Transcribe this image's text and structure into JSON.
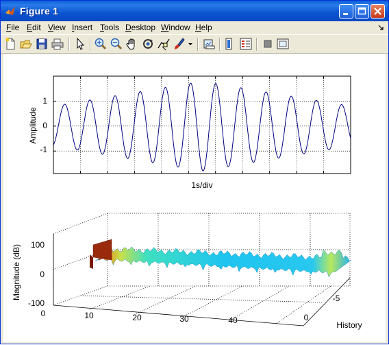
{
  "window": {
    "title": "Figure 1"
  },
  "menu": [
    "File",
    "Edit",
    "View",
    "Insert",
    "Tools",
    "Desktop",
    "Window",
    "Help"
  ],
  "toolbar_icons": [
    "new-figure-icon",
    "open-file-icon",
    "save-icon",
    "print-icon",
    "edit-plot-icon",
    "zoom-in-icon",
    "zoom-out-icon",
    "pan-icon",
    "rotate-3d-icon",
    "data-cursor-icon",
    "brush-icon",
    "brush-dropdown-icon",
    "link-plot-icon",
    "insert-colorbar-icon",
    "insert-legend-icon",
    "hide-plot-tools-icon",
    "show-plot-tools-icon"
  ],
  "top_axes": {
    "ylabel": "Amplitude",
    "xlabel": "1s/div",
    "yticks": [
      "1",
      "0",
      "-1"
    ]
  },
  "bottom_axes": {
    "zlabel": "Magnitude (dB)",
    "zticks": [
      "100",
      "0",
      "-100"
    ],
    "xticks": [
      "0",
      "10",
      "20",
      "30",
      "40"
    ],
    "yticks": [
      "0",
      "-5"
    ],
    "ylabel": "History"
  },
  "chart_data": [
    {
      "type": "line",
      "xlabel": "1s/div",
      "ylabel": "Amplitude",
      "ylim": [
        -1.9,
        2.0
      ],
      "xlim": [
        0,
        11.8
      ],
      "grid": true,
      "series": [
        {
          "color": "#00007f",
          "amplitude_envelope": [
            0.8,
            1.8,
            0.8
          ],
          "cycles": 11.8
        }
      ]
    },
    {
      "type": "heatmap",
      "xticks": [
        0,
        10,
        20,
        30,
        40
      ],
      "yticks": [
        0,
        -5
      ],
      "zticks": [
        100,
        0,
        -100
      ],
      "zlabel": "Magnitude (dB)",
      "ylabel": "History",
      "grid": true
    }
  ]
}
